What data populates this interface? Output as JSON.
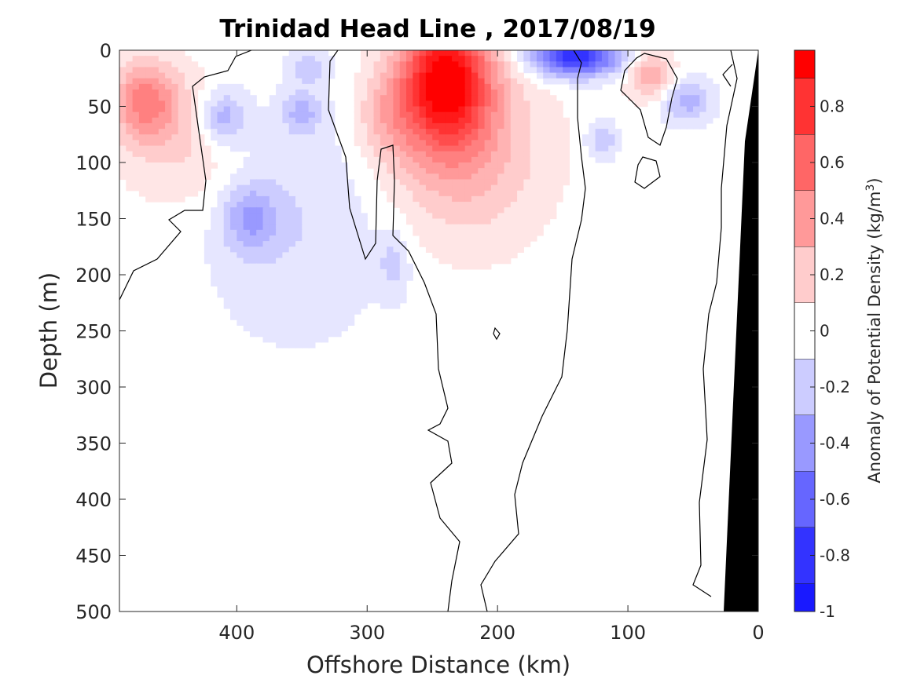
{
  "chart_data": {
    "type": "heatmap",
    "title": "Trinidad Head Line , 2017/08/19",
    "xlabel": "Offshore Distance (km)",
    "ylabel": "Depth (m)",
    "colorbar_label": "Anomaly of Potential Density (kg/m",
    "colorbar_label_superscript": "3",
    "colorbar_label_close": ")",
    "xlim": [
      490,
      0
    ],
    "ylim": [
      500,
      0
    ],
    "x_ticks": [
      400,
      300,
      200,
      100,
      0
    ],
    "x_tick_labels": [
      "400",
      "300",
      "200",
      "100",
      "0"
    ],
    "y_ticks": [
      0,
      50,
      100,
      150,
      200,
      250,
      300,
      350,
      400,
      450,
      500
    ],
    "y_tick_labels": [
      "0",
      "50",
      "100",
      "150",
      "200",
      "250",
      "300",
      "350",
      "400",
      "450",
      "500"
    ],
    "clim": [
      -1,
      1
    ],
    "colorbar_ticks": [
      0.8,
      0.6,
      0.4,
      0.2,
      0,
      -0.2,
      -0.4,
      -0.6,
      -0.8,
      -1
    ],
    "colorbar_tick_labels": [
      "0.8",
      "0.6",
      "0.4",
      "0.2",
      "0",
      "-0.2",
      "-0.4",
      "-0.6",
      "-0.8",
      "-1"
    ],
    "colormap": "blue-white-red",
    "colors": {
      "positive_max": "#ff0000",
      "negative_max": "#0000ff",
      "zero": "#ffffff",
      "bathymetry": "#000000"
    },
    "anomaly_features": [
      {
        "center_km": 240,
        "center_depth_m": 25,
        "peak": 0.95,
        "radius_km": 35,
        "radius_depth_m": 60
      },
      {
        "center_km": 225,
        "center_depth_m": 90,
        "peak": 0.3,
        "radius_km": 60,
        "radius_depth_m": 80
      },
      {
        "center_km": 470,
        "center_depth_m": 45,
        "peak": 0.45,
        "radius_km": 25,
        "radius_depth_m": 35
      },
      {
        "center_km": 440,
        "center_depth_m": 80,
        "peak": 0.18,
        "radius_km": 50,
        "radius_depth_m": 60
      },
      {
        "center_km": 83,
        "center_depth_m": 22,
        "peak": 0.35,
        "radius_km": 18,
        "radius_depth_m": 22
      },
      {
        "center_km": 285,
        "center_depth_m": 60,
        "peak": 0.2,
        "radius_km": 25,
        "radius_depth_m": 40
      },
      {
        "center_km": 140,
        "center_depth_m": 5,
        "peak": -0.85,
        "radius_km": 35,
        "radius_depth_m": 18
      },
      {
        "center_km": 410,
        "center_depth_m": 60,
        "peak": -0.35,
        "radius_km": 18,
        "radius_depth_m": 25
      },
      {
        "center_km": 390,
        "center_depth_m": 150,
        "peak": -0.3,
        "radius_km": 20,
        "radius_depth_m": 30
      },
      {
        "center_km": 355,
        "center_depth_m": 150,
        "peak": -0.15,
        "radius_km": 70,
        "radius_depth_m": 110
      },
      {
        "center_km": 350,
        "center_depth_m": 55,
        "peak": -0.25,
        "radius_km": 15,
        "radius_depth_m": 18
      },
      {
        "center_km": 55,
        "center_depth_m": 45,
        "peak": -0.3,
        "radius_km": 20,
        "radius_depth_m": 20
      },
      {
        "center_km": 120,
        "center_depth_m": 80,
        "peak": -0.25,
        "radius_km": 12,
        "radius_depth_m": 18
      },
      {
        "center_km": 345,
        "center_depth_m": 15,
        "peak": -0.2,
        "radius_km": 15,
        "radius_depth_m": 15
      },
      {
        "center_km": 280,
        "center_depth_m": 190,
        "peak": -0.18,
        "radius_km": 12,
        "radius_depth_m": 30
      }
    ]
  }
}
